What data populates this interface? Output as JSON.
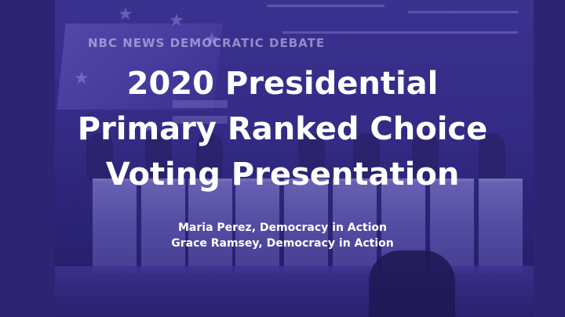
{
  "slide": {
    "title_lines": [
      "2020 Presidential",
      "Primary Ranked Choice",
      "Voting Presentation"
    ],
    "authors": [
      "Maria Perez, Democracy in Action",
      "Grace Ramsey, Democracy in Action"
    ],
    "background_image": {
      "description_icon": "debate-stage-photo",
      "sign_text": "NBC NEWS DEMOCRATIC DEBATE"
    }
  },
  "colors": {
    "overlay": "#2e2478",
    "text": "#ffffff"
  }
}
